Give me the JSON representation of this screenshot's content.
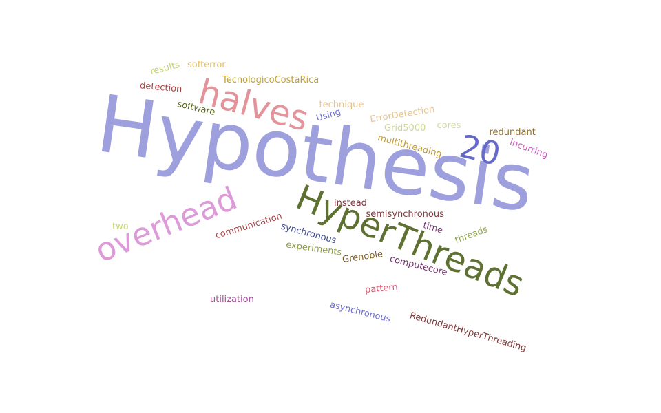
{
  "words": [
    {
      "id": "hypothesis",
      "text": "Hypothesis",
      "color": "#9da0dc",
      "rotate": 8
    },
    {
      "id": "halves",
      "text": "halves",
      "color": "#e3949a",
      "rotate": 15
    },
    {
      "id": "hyperthreads",
      "text": "HyperThreads",
      "color": "#5e7132",
      "rotate": 22
    },
    {
      "id": "overhead",
      "text": "overhead",
      "color": "#dc9ad8",
      "rotate": -22
    },
    {
      "id": "twenty",
      "text": "20",
      "color": "#6769c8",
      "rotate": 14
    },
    {
      "id": "results",
      "text": "results",
      "color": "#c6d274",
      "rotate": -14
    },
    {
      "id": "softerror",
      "text": "softerror",
      "color": "#e2bd5f",
      "rotate": 0
    },
    {
      "id": "tecnologico",
      "text": "TecnologicoCostaRica",
      "color": "#c1a131",
      "rotate": 0
    },
    {
      "id": "detection",
      "text": "detection",
      "color": "#b0403c",
      "rotate": 5
    },
    {
      "id": "software",
      "text": "software",
      "color": "#5b6a1f",
      "rotate": 13
    },
    {
      "id": "technique",
      "text": "technique",
      "color": "#e5c28c",
      "rotate": 0
    },
    {
      "id": "using",
      "text": "Using",
      "color": "#6e6ed0",
      "rotate": -17
    },
    {
      "id": "errordetection",
      "text": "ErrorDetection",
      "color": "#e7c590",
      "rotate": -9
    },
    {
      "id": "grid5000",
      "text": "Grid5000",
      "color": "#ccd994",
      "rotate": 0
    },
    {
      "id": "cores",
      "text": "cores",
      "color": "#d0dc9c",
      "rotate": 0
    },
    {
      "id": "redundant",
      "text": "redundant",
      "color": "#8c6e2a",
      "rotate": 0
    },
    {
      "id": "multithreading",
      "text": "multithreading",
      "color": "#c09b36",
      "rotate": 15
    },
    {
      "id": "incurring",
      "text": "incurring",
      "color": "#c85cbf",
      "rotate": 20
    },
    {
      "id": "instead",
      "text": "instead",
      "color": "#7b3b43",
      "rotate": 0
    },
    {
      "id": "semisynchronous",
      "text": "semisynchronous",
      "color": "#7c3a3e",
      "rotate": 0
    },
    {
      "id": "two",
      "text": "two",
      "color": "#c6d67c",
      "rotate": 0
    },
    {
      "id": "communication",
      "text": "communication",
      "color": "#a8474b",
      "rotate": -17
    },
    {
      "id": "synchronous",
      "text": "synchronous",
      "color": "#3e4b8e",
      "rotate": 15
    },
    {
      "id": "time",
      "text": "time",
      "color": "#7b3b7a",
      "rotate": 17
    },
    {
      "id": "threads",
      "text": "threads",
      "color": "#8ea54e",
      "rotate": -20
    },
    {
      "id": "experiments",
      "text": "experiments",
      "color": "#8f9f46",
      "rotate": 8
    },
    {
      "id": "grenoble",
      "text": "Grenoble",
      "color": "#7d5d1f",
      "rotate": -8
    },
    {
      "id": "computecore",
      "text": "computecore",
      "color": "#71306c",
      "rotate": 14
    },
    {
      "id": "pattern",
      "text": "pattern",
      "color": "#d65a72",
      "rotate": -5
    },
    {
      "id": "utilization",
      "text": "utilization",
      "color": "#a35397",
      "rotate": 0
    },
    {
      "id": "asynchronous",
      "text": "asynchronous",
      "color": "#6d6fc9",
      "rotate": 14
    },
    {
      "id": "redundanthyperthreading",
      "text": "RedundantHyperThreading",
      "color": "#7c3a3a",
      "rotate": 16
    }
  ]
}
